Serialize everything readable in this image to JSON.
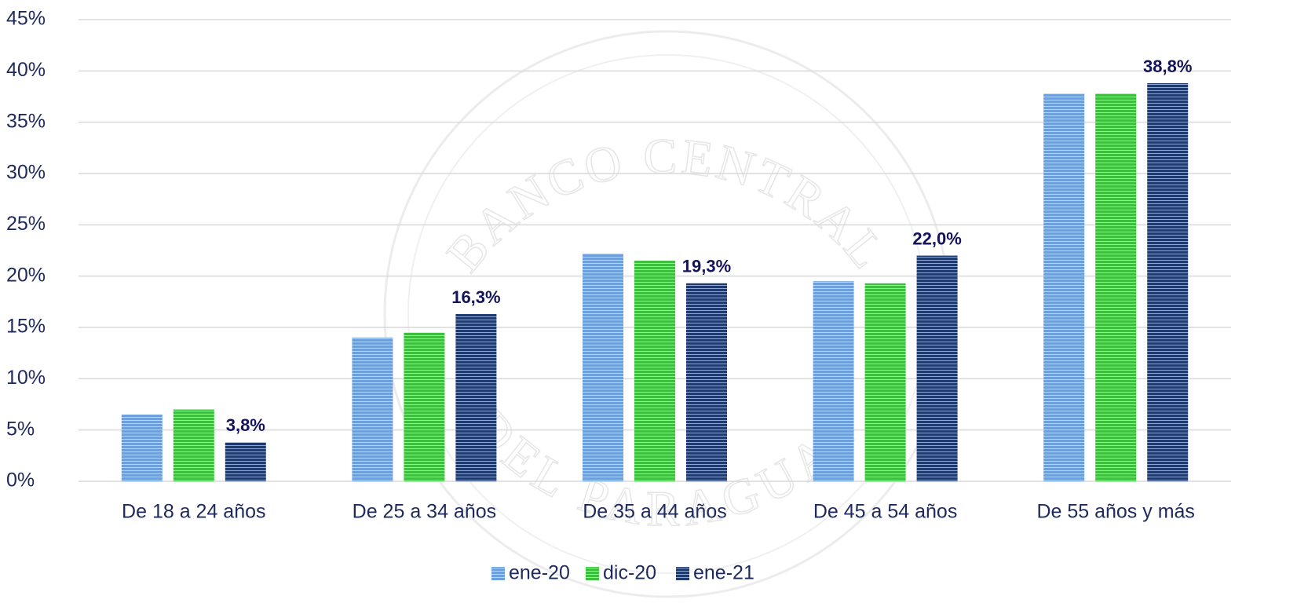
{
  "chart_data": {
    "type": "bar",
    "watermark": [
      "BANCO CENTRAL",
      "DEL PARAGUAY"
    ],
    "categories": [
      "De 18 a 24 años",
      "De 25 a 34 años",
      "De 35 a 44 años",
      "De 45 a 54 años",
      "De 55 años y más"
    ],
    "series": [
      {
        "name": "ene-20",
        "color": "#6d9fdc",
        "values": [
          6.5,
          14.0,
          22.2,
          19.5,
          37.8
        ]
      },
      {
        "name": "dic-20",
        "color": "#3cbf3c",
        "values": [
          7.0,
          14.5,
          21.5,
          19.3,
          37.8
        ]
      },
      {
        "name": "ene-21",
        "color": "#1f3a6e",
        "values": [
          3.8,
          16.3,
          19.3,
          22.0,
          38.8
        ],
        "value_labels": [
          "3,8%",
          "16,3%",
          "19,3%",
          "22,0%",
          "38,8%"
        ]
      }
    ],
    "ylim": [
      0,
      45
    ],
    "yticks": [
      {
        "value": 0,
        "label": "0%"
      },
      {
        "value": 5,
        "label": "5%"
      },
      {
        "value": 10,
        "label": "10%"
      },
      {
        "value": 15,
        "label": "15%"
      },
      {
        "value": 20,
        "label": "20%"
      },
      {
        "value": 25,
        "label": "25%"
      },
      {
        "value": 30,
        "label": "30%"
      },
      {
        "value": 35,
        "label": "35%"
      },
      {
        "value": 40,
        "label": "40%"
      },
      {
        "value": 45,
        "label": "45%"
      }
    ],
    "grid": true,
    "legend": "bottom"
  }
}
